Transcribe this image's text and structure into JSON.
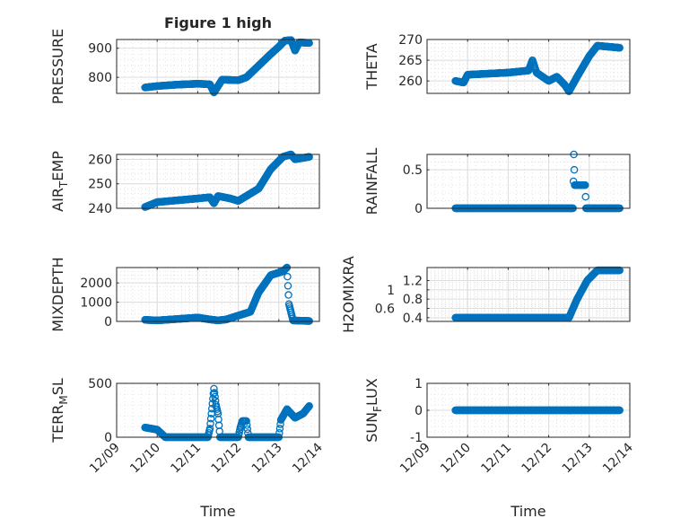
{
  "figure_title": "Figure 1 high",
  "colors": {
    "marker": "#0072BD",
    "axis": "#262626",
    "grid": "#dcdcdc"
  },
  "chart_data": [
    {
      "type": "scatter",
      "ylabel": {
        "main": "PRESSURE",
        "sub": "",
        "rest": ""
      },
      "ylim": [
        745,
        930
      ],
      "yticks": [
        800,
        900
      ],
      "xlabel": "",
      "xticks": [
        "12/09",
        "12/10",
        "12/11",
        "12/12",
        "12/13",
        "12/14"
      ],
      "xlim": [
        0,
        5
      ],
      "grid": true,
      "points": [
        [
          0.7,
          765
        ],
        [
          1.0,
          770
        ],
        [
          1.5,
          775
        ],
        [
          2.0,
          778
        ],
        [
          2.3,
          776
        ],
        [
          2.4,
          748
        ],
        [
          2.5,
          770
        ],
        [
          2.6,
          792
        ],
        [
          3.0,
          790
        ],
        [
          3.2,
          800
        ],
        [
          3.5,
          840
        ],
        [
          3.8,
          880
        ],
        [
          4.0,
          905
        ],
        [
          4.15,
          926
        ],
        [
          4.3,
          928
        ],
        [
          4.4,
          892
        ],
        [
          4.5,
          920
        ],
        [
          4.75,
          918
        ]
      ]
    },
    {
      "type": "scatter",
      "ylabel": {
        "main": "THETA",
        "sub": "",
        "rest": ""
      },
      "ylim": [
        257,
        270
      ],
      "yticks": [
        260,
        265,
        270
      ],
      "xlabel": "",
      "xticks": [
        "12/09",
        "12/10",
        "12/11",
        "12/12",
        "12/13",
        "12/14"
      ],
      "xlim": [
        0,
        5
      ],
      "grid": true,
      "points": [
        [
          0.7,
          260
        ],
        [
          0.9,
          259.6
        ],
        [
          1.0,
          261.5
        ],
        [
          2.0,
          262
        ],
        [
          2.5,
          262.5
        ],
        [
          2.6,
          265
        ],
        [
          2.7,
          262
        ],
        [
          3.0,
          260
        ],
        [
          3.2,
          261
        ],
        [
          3.4,
          259
        ],
        [
          3.5,
          257.5
        ],
        [
          3.7,
          261
        ],
        [
          4.0,
          266
        ],
        [
          4.2,
          268.5
        ],
        [
          4.75,
          268
        ]
      ]
    },
    {
      "type": "scatter",
      "ylabel": {
        "main": "AIR",
        "sub": "T",
        "rest": "EMP"
      },
      "ylim": [
        240,
        262
      ],
      "yticks": [
        240,
        250,
        260
      ],
      "xlabel": "",
      "xticks": [
        "12/09",
        "12/10",
        "12/11",
        "12/12",
        "12/13",
        "12/14"
      ],
      "xlim": [
        0,
        5
      ],
      "grid": true,
      "points": [
        [
          0.7,
          240.5
        ],
        [
          1.0,
          242.5
        ],
        [
          2.0,
          244
        ],
        [
          2.3,
          244.5
        ],
        [
          2.4,
          242
        ],
        [
          2.5,
          245
        ],
        [
          2.8,
          244
        ],
        [
          3.0,
          243
        ],
        [
          3.3,
          246
        ],
        [
          3.5,
          248
        ],
        [
          3.8,
          256
        ],
        [
          4.1,
          261
        ],
        [
          4.3,
          262
        ],
        [
          4.4,
          260
        ],
        [
          4.75,
          261
        ]
      ]
    },
    {
      "type": "scatter",
      "ylabel": {
        "main": "RAINFALL",
        "sub": "",
        "rest": ""
      },
      "ylim": [
        0,
        0.7
      ],
      "yticks": [
        0,
        0.5
      ],
      "xlabel": "",
      "xticks": [
        "12/09",
        "12/10",
        "12/11",
        "12/12",
        "12/13",
        "12/14"
      ],
      "xlim": [
        0,
        5
      ],
      "grid": true,
      "points": [
        [
          0.7,
          0
        ],
        [
          3.6,
          0
        ],
        [
          3.62,
          0.7
        ],
        [
          3.64,
          0.3
        ],
        [
          3.9,
          0.3
        ],
        [
          3.92,
          0
        ],
        [
          4.75,
          0
        ]
      ]
    },
    {
      "type": "scatter",
      "ylabel": {
        "main": "MIXDEPTH",
        "sub": "",
        "rest": ""
      },
      "ylim": [
        0,
        2800
      ],
      "yticks": [
        0,
        1000,
        2000
      ],
      "xlabel": "",
      "xticks": [
        "12/09",
        "12/10",
        "12/11",
        "12/12",
        "12/13",
        "12/14"
      ],
      "xlim": [
        0,
        5
      ],
      "grid": true,
      "points": [
        [
          0.7,
          80
        ],
        [
          1.0,
          50
        ],
        [
          2.0,
          200
        ],
        [
          2.3,
          100
        ],
        [
          2.5,
          50
        ],
        [
          2.7,
          100
        ],
        [
          3.0,
          300
        ],
        [
          3.3,
          500
        ],
        [
          3.5,
          1500
        ],
        [
          3.8,
          2400
        ],
        [
          4.1,
          2600
        ],
        [
          4.2,
          2800
        ],
        [
          4.25,
          900
        ],
        [
          4.35,
          50
        ],
        [
          4.75,
          20
        ]
      ]
    },
    {
      "type": "scatter",
      "ylabel": {
        "main": "H2OMIXRA",
        "sub": "",
        "rest": ""
      },
      "ylim": [
        0.32,
        1.48
      ],
      "yticks": [
        0.4,
        0.6,
        0.8,
        1,
        1.2
      ],
      "xlabel": "",
      "xticks": [
        "12/09",
        "12/10",
        "12/11",
        "12/12",
        "12/13",
        "12/14"
      ],
      "xlim": [
        0,
        5
      ],
      "grid": true,
      "points": [
        [
          0.7,
          0.4
        ],
        [
          3.5,
          0.4
        ],
        [
          3.7,
          0.8
        ],
        [
          3.95,
          1.2
        ],
        [
          4.2,
          1.42
        ],
        [
          4.75,
          1.42
        ]
      ]
    },
    {
      "type": "scatter",
      "ylabel": {
        "main": "TERR",
        "sub": "M",
        "rest": "SL"
      },
      "ylim": [
        0,
        500
      ],
      "yticks": [
        0,
        500
      ],
      "xlabel": "Time",
      "xticks": [
        "12/09",
        "12/10",
        "12/11",
        "12/12",
        "12/13",
        "12/14"
      ],
      "xlim": [
        0,
        5
      ],
      "grid": true,
      "points": [
        [
          0.7,
          90
        ],
        [
          1.0,
          70
        ],
        [
          1.2,
          0
        ],
        [
          2.25,
          0
        ],
        [
          2.3,
          80
        ],
        [
          2.4,
          450
        ],
        [
          2.45,
          300
        ],
        [
          2.5,
          220
        ],
        [
          2.55,
          0
        ],
        [
          3.0,
          0
        ],
        [
          3.05,
          90
        ],
        [
          3.1,
          150
        ],
        [
          3.2,
          150
        ],
        [
          3.25,
          0
        ],
        [
          4.0,
          0
        ],
        [
          4.05,
          160
        ],
        [
          4.2,
          260
        ],
        [
          4.4,
          180
        ],
        [
          4.6,
          220
        ],
        [
          4.75,
          290
        ]
      ]
    },
    {
      "type": "scatter",
      "ylabel": {
        "main": "SUN",
        "sub": "F",
        "rest": "LUX"
      },
      "ylim": [
        -1,
        1
      ],
      "yticks": [
        -1,
        0,
        1
      ],
      "xlabel": "Time",
      "xticks": [
        "12/09",
        "12/10",
        "12/11",
        "12/12",
        "12/13",
        "12/14"
      ],
      "xlim": [
        0,
        5
      ],
      "grid": true,
      "points": [
        [
          0.7,
          0
        ],
        [
          4.75,
          0
        ]
      ]
    }
  ]
}
